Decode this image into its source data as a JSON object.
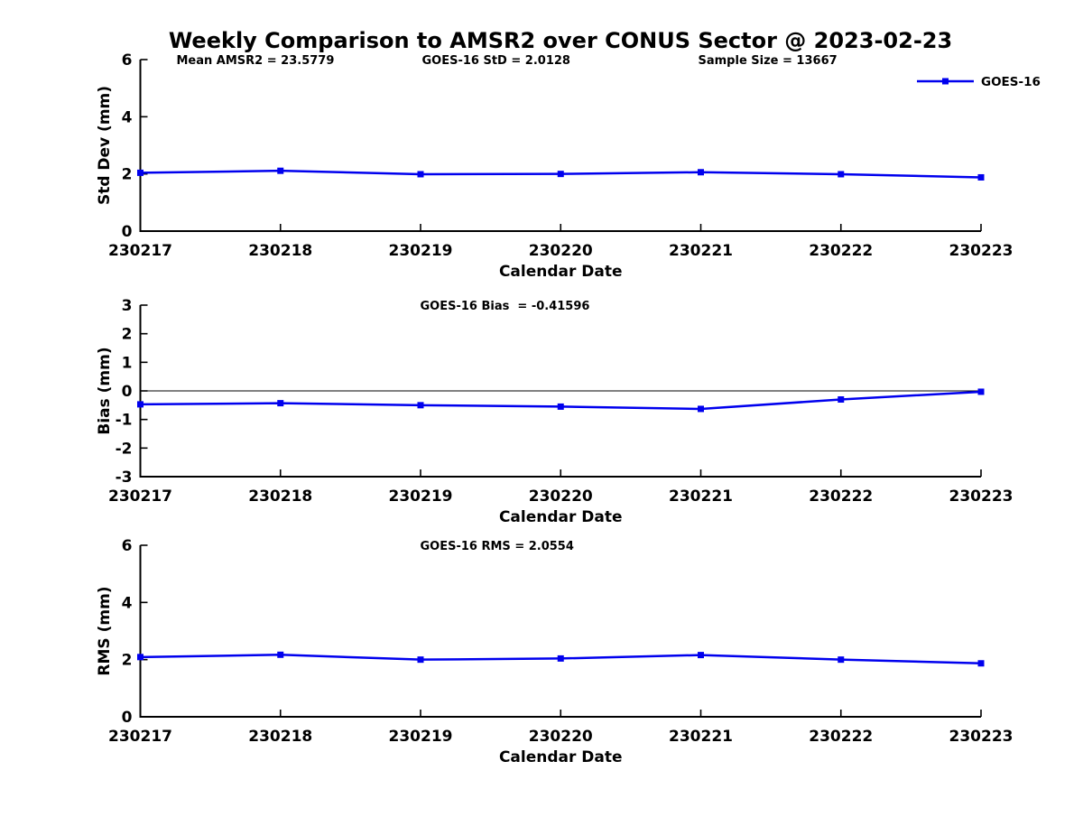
{
  "title": "Weekly Comparison to AMSR2 over CONUS Sector @ 2023-02-23",
  "figure": {
    "series_color": "#0000EE",
    "axis_color": "#000000",
    "zero_line_color": "#000000",
    "legend_label": "GOES-16"
  },
  "chart_data": [
    {
      "type": "line",
      "panel": "std-dev",
      "annotations": [
        "Mean AMSR2 = 23.5779",
        "GOES-16 StD = 2.0128",
        "Sample Size = 13667"
      ],
      "categories": [
        "230217",
        "230218",
        "230219",
        "230220",
        "230221",
        "230222",
        "230223"
      ],
      "series": [
        {
          "name": "GOES-16",
          "color": "#0000EE",
          "marker": "square",
          "values": [
            2.04,
            2.11,
            1.99,
            2.0,
            2.06,
            1.99,
            1.88
          ]
        }
      ],
      "xlabel": "Calendar Date",
      "ylabel": "Std Dev (mm)",
      "ylim": [
        0,
        6
      ],
      "yticks": [
        0,
        2,
        4,
        6
      ],
      "grid": false,
      "zero_line": false,
      "legend": {
        "show": true,
        "label": "GOES-16",
        "position": "top-right"
      }
    },
    {
      "type": "line",
      "panel": "bias",
      "annotations": [
        "GOES-16 Bias  = -0.41596"
      ],
      "categories": [
        "230217",
        "230218",
        "230219",
        "230220",
        "230221",
        "230222",
        "230223"
      ],
      "series": [
        {
          "name": "GOES-16",
          "color": "#0000EE",
          "marker": "square",
          "values": [
            -0.47,
            -0.43,
            -0.5,
            -0.55,
            -0.63,
            -0.3,
            -0.03
          ]
        }
      ],
      "xlabel": "Calendar Date",
      "ylabel": "Bias (mm)",
      "ylim": [
        -3,
        3
      ],
      "yticks": [
        -3,
        -2,
        -1,
        0,
        1,
        2,
        3
      ],
      "grid": false,
      "zero_line": true,
      "legend": {
        "show": false
      }
    },
    {
      "type": "line",
      "panel": "rms",
      "annotations": [
        "GOES-16 RMS = 2.0554"
      ],
      "categories": [
        "230217",
        "230218",
        "230219",
        "230220",
        "230221",
        "230222",
        "230223"
      ],
      "series": [
        {
          "name": "GOES-16",
          "color": "#0000EE",
          "marker": "square",
          "values": [
            2.09,
            2.17,
            2.0,
            2.04,
            2.16,
            2.0,
            1.87
          ]
        }
      ],
      "xlabel": "Calendar Date",
      "ylabel": "RMS (mm)",
      "ylim": [
        0,
        6
      ],
      "yticks": [
        0,
        2,
        4,
        6
      ],
      "grid": false,
      "zero_line": false,
      "legend": {
        "show": false
      }
    }
  ]
}
